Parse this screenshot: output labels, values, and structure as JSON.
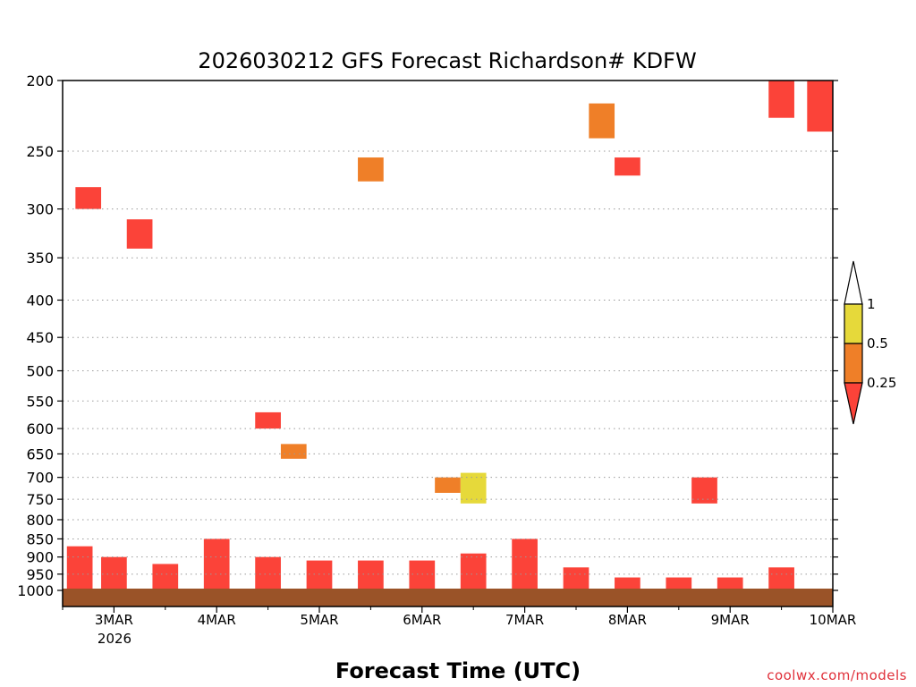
{
  "chart_data": {
    "type": "heatmap",
    "title": "2026030212 GFS Forecast Richardson# KDFW",
    "xlabel": "Forecast Time (UTC)",
    "ylabel": "",
    "credit": "coolwx.com/models",
    "y_axis": {
      "scale": "log-pressure",
      "reversed": true,
      "range_hPa": [
        1000,
        200
      ],
      "ticks": [
        "200",
        "250",
        "300",
        "350",
        "400",
        "450",
        "500",
        "550",
        "600",
        "650",
        "700",
        "750",
        "800",
        "850",
        "900",
        "950",
        "1000"
      ],
      "grid": "dotted"
    },
    "x_axis": {
      "range": [
        "2026-03-02 12Z",
        "2026-03-10 00Z"
      ],
      "ticks": [
        "3MAR",
        "4MAR",
        "5MAR",
        "6MAR",
        "7MAR",
        "8MAR",
        "9MAR",
        "10MAR"
      ],
      "year_label": "2026"
    },
    "colorbar": {
      "levels": [
        "1",
        "0.5",
        "0.25"
      ],
      "bins": [
        {
          "range": "> 1",
          "color": "#ffffff"
        },
        {
          "range": "0.5 - 1",
          "color": "#e6d93a"
        },
        {
          "range": "0.25 - 0.5",
          "color": "#ef7f28"
        },
        {
          "range": "< 0.25",
          "color": "#fb4339"
        }
      ]
    },
    "colors": {
      "red": "#fb4339",
      "orange": "#ef7f28",
      "yellow": "#e6d93a",
      "ground": "#9a5328"
    },
    "surface": {
      "label": "below ground",
      "color": "#9a5328"
    },
    "patches": [
      {
        "t": "2026-03-02 16Z",
        "p_top": 1000,
        "p_bot": 870,
        "cat": "red"
      },
      {
        "t": "2026-03-03 00Z",
        "p_top": 1000,
        "p_bot": 900,
        "cat": "red"
      },
      {
        "t": "2026-03-03 12Z",
        "p_top": 1000,
        "p_bot": 920,
        "cat": "red"
      },
      {
        "t": "2026-03-04 00Z",
        "p_top": 1000,
        "p_bot": 850,
        "cat": "red"
      },
      {
        "t": "2026-03-04 12Z",
        "p_top": 1000,
        "p_bot": 900,
        "cat": "red"
      },
      {
        "t": "2026-03-05 00Z",
        "p_top": 1000,
        "p_bot": 910,
        "cat": "red"
      },
      {
        "t": "2026-03-05 12Z",
        "p_top": 1000,
        "p_bot": 910,
        "cat": "red"
      },
      {
        "t": "2026-03-06 00Z",
        "p_top": 1000,
        "p_bot": 910,
        "cat": "red"
      },
      {
        "t": "2026-03-06 12Z",
        "p_top": 1000,
        "p_bot": 890,
        "cat": "red"
      },
      {
        "t": "2026-03-07 00Z",
        "p_top": 1000,
        "p_bot": 850,
        "cat": "red"
      },
      {
        "t": "2026-03-07 12Z",
        "p_top": 1000,
        "p_bot": 930,
        "cat": "red"
      },
      {
        "t": "2026-03-08 00Z",
        "p_top": 1000,
        "p_bot": 960,
        "cat": "red"
      },
      {
        "t": "2026-03-08 12Z",
        "p_top": 1000,
        "p_bot": 960,
        "cat": "red"
      },
      {
        "t": "2026-03-09 00Z",
        "p_top": 1000,
        "p_bot": 960,
        "cat": "red"
      },
      {
        "t": "2026-03-09 12Z",
        "p_top": 1000,
        "p_bot": 930,
        "cat": "red"
      },
      {
        "t": "2026-03-09 12Z",
        "p_top": 225,
        "p_bot": 200,
        "cat": "red"
      },
      {
        "t": "2026-03-09 21Z",
        "p_top": 235,
        "p_bot": 200,
        "cat": "red"
      },
      {
        "t": "2026-03-07 18Z",
        "p_top": 240,
        "p_bot": 215,
        "cat": "orange"
      },
      {
        "t": "2026-03-08 00Z",
        "p_top": 270,
        "p_bot": 255,
        "cat": "red"
      },
      {
        "t": "2026-03-08 18Z",
        "p_top": 760,
        "p_bot": 700,
        "cat": "red"
      },
      {
        "t": "2026-03-04 12Z",
        "p_top": 600,
        "p_bot": 570,
        "cat": "red"
      },
      {
        "t": "2026-03-05 12Z",
        "p_top": 275,
        "p_bot": 255,
        "cat": "orange"
      },
      {
        "t": "2026-03-06 06Z",
        "p_top": 735,
        "p_bot": 700,
        "cat": "orange"
      },
      {
        "t": "2026-03-06 12Z",
        "p_top": 760,
        "p_bot": 690,
        "cat": "yellow"
      },
      {
        "t": "2026-03-04 18Z",
        "p_top": 660,
        "p_bot": 630,
        "cat": "orange"
      },
      {
        "t": "2026-03-02 18Z",
        "p_top": 300,
        "p_bot": 280,
        "cat": "red"
      },
      {
        "t": "2026-03-03 06Z",
        "p_top": 340,
        "p_bot": 310,
        "cat": "red"
      }
    ]
  }
}
